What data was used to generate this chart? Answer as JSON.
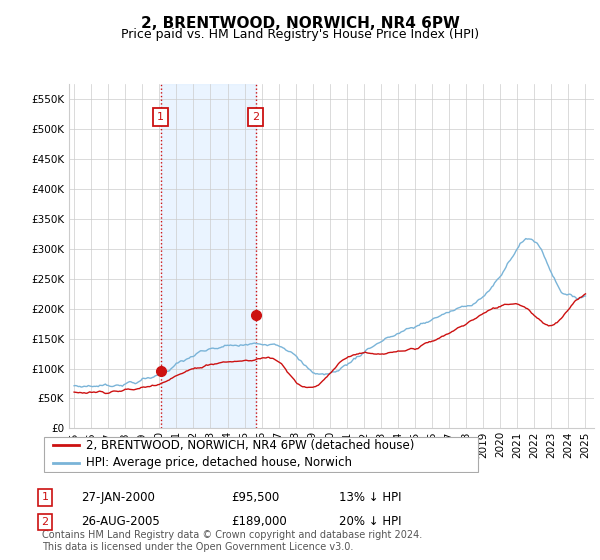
{
  "title": "2, BRENTWOOD, NORWICH, NR4 6PW",
  "subtitle": "Price paid vs. HM Land Registry's House Price Index (HPI)",
  "ylim": [
    0,
    575000
  ],
  "yticks": [
    0,
    50000,
    100000,
    150000,
    200000,
    250000,
    300000,
    350000,
    400000,
    450000,
    500000,
    550000
  ],
  "ytick_labels": [
    "£0",
    "£50K",
    "£100K",
    "£150K",
    "£200K",
    "£250K",
    "£300K",
    "£350K",
    "£400K",
    "£450K",
    "£500K",
    "£550K"
  ],
  "hpi_color": "#7ab4d8",
  "sale_color": "#cc1111",
  "background_color": "#ffffff",
  "grid_color": "#cccccc",
  "legend_border_color": "#aaaaaa",
  "marker1_date_x": 2000.07,
  "marker1_date_label": "27-JAN-2000",
  "marker1_price": 95500,
  "marker1_pct": "13% ↓ HPI",
  "marker2_date_x": 2005.65,
  "marker2_date_label": "26-AUG-2005",
  "marker2_price": 189000,
  "marker2_pct": "20% ↓ HPI",
  "vline_color": "#cc1111",
  "shade_color": "#ddeeff",
  "sale_legend": "2, BRENTWOOD, NORWICH, NR4 6PW (detached house)",
  "hpi_legend": "HPI: Average price, detached house, Norwich",
  "footnote": "Contains HM Land Registry data © Crown copyright and database right 2024.\nThis data is licensed under the Open Government Licence v3.0.",
  "title_fontsize": 11,
  "subtitle_fontsize": 9,
  "tick_fontsize": 7.5,
  "legend_fontsize": 8.5,
  "footnote_fontsize": 7,
  "xlim_left": 1994.7,
  "xlim_right": 2025.5
}
